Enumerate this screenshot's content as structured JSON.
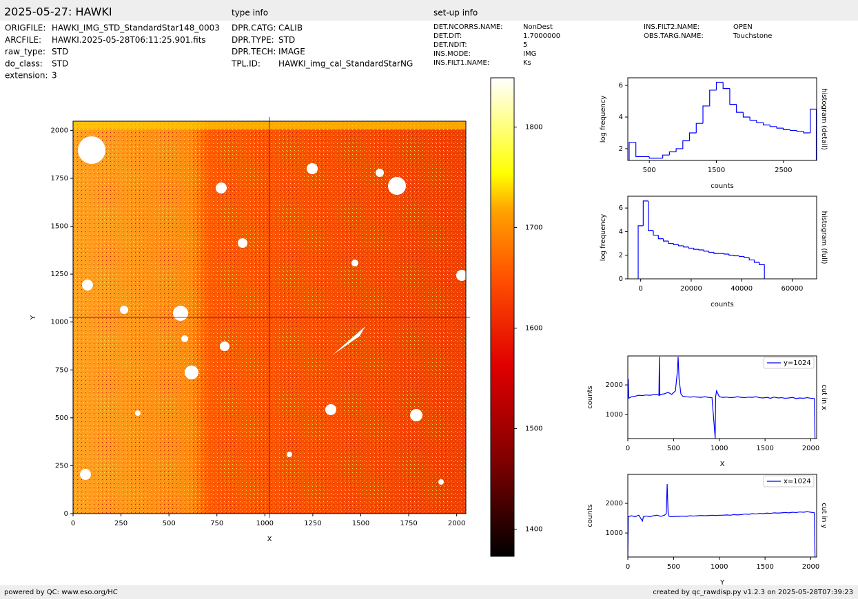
{
  "header": {
    "title": "2025-05-27: HAWKI",
    "type_info": "type info",
    "setup_info": "set-up info"
  },
  "info": {
    "file": [
      {
        "key": "ORIGFILE:",
        "value": "HAWKI_IMG_STD_StandardStar148_0003"
      },
      {
        "key": "ARCFILE:",
        "value": "HAWKI.2025-05-28T06:11:25.901.fits"
      },
      {
        "key": "raw_type:",
        "value": "STD"
      },
      {
        "key": "do_class:",
        "value": "STD"
      },
      {
        "key": "extension:",
        "value": "3"
      }
    ],
    "type": [
      {
        "key": "DPR.CATG:",
        "value": "CALIB"
      },
      {
        "key": "DPR.TYPE:",
        "value": "STD"
      },
      {
        "key": "DPR.TECH:",
        "value": "IMAGE"
      },
      {
        "key": "TPL.ID:",
        "value": "HAWKI_img_cal_StandardStarNG"
      }
    ],
    "setup": [
      {
        "key": "DET.NCORRS.NAME:",
        "value": "NonDest"
      },
      {
        "key": "DET.DIT:",
        "value": "1.7000000"
      },
      {
        "key": "DET.NDIT:",
        "value": "5"
      },
      {
        "key": "INS.MODE:",
        "value": "IMG"
      },
      {
        "key": "INS.FILT1.NAME:",
        "value": "Ks"
      },
      {
        "key": "INS.FILT2.NAME:",
        "value": "OPEN"
      },
      {
        "key": "OBS.TARG.NAME:",
        "value": "Touchstone"
      }
    ]
  },
  "footer": {
    "left": "powered by QC: www.eso.org/HC",
    "right": "created by qc_rawdisp.py v1.2.3 on 2025-05-28T07:39:23"
  },
  "chart_data": [
    {
      "type": "image",
      "xlabel": "X",
      "ylabel": "Y",
      "xlim": [
        0,
        2048
      ],
      "ylim": [
        0,
        2048
      ],
      "xticks": [
        0,
        250,
        500,
        750,
        1000,
        1250,
        1500,
        1750,
        2000
      ],
      "yticks": [
        0,
        250,
        500,
        750,
        1000,
        1250,
        1500,
        1750,
        2000
      ],
      "crosshair": [
        1024,
        1024
      ],
      "color": "#0000ff"
    },
    {
      "type": "colorbar",
      "ylim": [
        1373,
        1849
      ],
      "yticks": [
        1400,
        1500,
        1600,
        1700,
        1800
      ]
    },
    {
      "type": "histogram",
      "xlabel": "counts",
      "ylabel": "log frequency",
      "side_label": "histogram (detail)",
      "color": "#0000ff",
      "xlim": [
        180,
        2995
      ],
      "ylim": [
        1.26,
        6.48
      ],
      "xticks": [
        500,
        1500,
        2500
      ],
      "yticks": [
        2,
        4,
        6
      ],
      "bins": [
        200,
        300,
        400,
        500,
        600,
        700,
        800,
        900,
        1000,
        1100,
        1200,
        1300,
        1400,
        1500,
        1600,
        1700,
        1800,
        1900,
        2000,
        2100,
        2200,
        2300,
        2400,
        2500,
        2600,
        2700,
        2800,
        2900,
        2990
      ],
      "values": [
        2.4,
        1.5,
        1.5,
        1.4,
        1.4,
        1.6,
        1.8,
        2.0,
        2.5,
        3.0,
        3.6,
        4.7,
        5.7,
        6.2,
        5.8,
        4.8,
        4.3,
        4.0,
        3.8,
        3.65,
        3.5,
        3.4,
        3.3,
        3.2,
        3.15,
        3.1,
        3.0,
        4.5
      ]
    },
    {
      "type": "histogram",
      "xlabel": "counts",
      "ylabel": "log frequency",
      "side_label": "histogram (full)",
      "color": "#0000ff",
      "xlim": [
        -5100,
        69700
      ],
      "ylim": [
        0,
        7
      ],
      "xticks": [
        0,
        20000,
        40000,
        60000
      ],
      "yticks": [
        0,
        2,
        4,
        6
      ],
      "bins": [
        -1000,
        1000,
        3000,
        5000,
        7000,
        9000,
        11000,
        13000,
        15000,
        17000,
        19000,
        21000,
        23000,
        25000,
        27000,
        29000,
        31000,
        33000,
        35000,
        37000,
        39000,
        41000,
        43000,
        45000,
        47000,
        49000
      ],
      "values": [
        4.5,
        6.6,
        4.1,
        3.7,
        3.4,
        3.2,
        3.0,
        2.9,
        2.8,
        2.7,
        2.6,
        2.5,
        2.45,
        2.35,
        2.25,
        2.15,
        2.15,
        2.1,
        2.0,
        1.95,
        1.9,
        1.8,
        1.6,
        1.4,
        1.2
      ]
    },
    {
      "type": "line",
      "xlabel": "X",
      "ylabel": "counts",
      "side_label": "cut in x",
      "xlim": [
        0,
        2064
      ],
      "ylim": [
        190,
        2977
      ],
      "xticks": [
        0,
        500,
        1000,
        1500,
        2000
      ],
      "yticks": [
        1000,
        2000
      ],
      "legend": "upper right",
      "x": [
        0,
        5,
        10,
        40,
        80,
        120,
        160,
        200,
        240,
        280,
        320,
        340,
        345,
        350,
        360,
        400,
        440,
        480,
        520,
        540,
        550,
        560,
        580,
        600,
        640,
        680,
        720,
        760,
        800,
        840,
        880,
        920,
        955,
        960,
        970,
        1000,
        1040,
        1080,
        1120,
        1160,
        1200,
        1240,
        1280,
        1320,
        1360,
        1400,
        1440,
        1480,
        1520,
        1560,
        1600,
        1640,
        1680,
        1720,
        1760,
        1800,
        1840,
        1880,
        1920,
        1960,
        2000,
        2040,
        2046
      ],
      "series": [
        {
          "name": "y=1024",
          "color": "#0000ff",
          "values": [
            1600,
            2200,
            1550,
            1600,
            1620,
            1650,
            1640,
            1660,
            1650,
            1670,
            1680,
            1650,
            2950,
            1650,
            1680,
            1700,
            1750,
            1680,
            1800,
            2400,
            2950,
            2200,
            1700,
            1620,
            1600,
            1590,
            1600,
            1590,
            1580,
            1600,
            1580,
            1570,
            200,
            1600,
            1800,
            1600,
            1580,
            1590,
            1570,
            1580,
            1600,
            1580,
            1570,
            1590,
            1580,
            1600,
            1570,
            1560,
            1580,
            1550,
            1590,
            1560,
            1570,
            1550,
            1560,
            1580,
            1540,
            1560,
            1550,
            1570,
            1550,
            1540,
            200
          ]
        }
      ]
    },
    {
      "type": "line",
      "xlabel": "Y",
      "ylabel": "counts",
      "side_label": "cut in y",
      "xlim": [
        0,
        2064
      ],
      "ylim": [
        190,
        2977
      ],
      "xticks": [
        0,
        500,
        1000,
        1500,
        2000
      ],
      "yticks": [
        1000,
        2000
      ],
      "legend": "upper right",
      "x": [
        0,
        5,
        40,
        80,
        120,
        160,
        170,
        200,
        240,
        280,
        320,
        360,
        400,
        420,
        430,
        440,
        450,
        480,
        520,
        560,
        600,
        640,
        680,
        720,
        760,
        800,
        840,
        880,
        920,
        960,
        1000,
        1040,
        1080,
        1120,
        1160,
        1200,
        1240,
        1280,
        1320,
        1360,
        1400,
        1440,
        1480,
        1520,
        1560,
        1600,
        1640,
        1680,
        1720,
        1760,
        1800,
        1840,
        1880,
        1920,
        1960,
        2000,
        2040,
        2046
      ],
      "series": [
        {
          "name": "x=1024",
          "color": "#0000ff",
          "values": [
            200,
            1550,
            1580,
            1550,
            1600,
            1400,
            1550,
            1570,
            1550,
            1580,
            1600,
            1560,
            1600,
            1650,
            2650,
            1700,
            1560,
            1550,
            1560,
            1560,
            1570,
            1560,
            1580,
            1570,
            1580,
            1590,
            1580,
            1590,
            1600,
            1590,
            1600,
            1600,
            1610,
            1600,
            1620,
            1610,
            1620,
            1640,
            1630,
            1650,
            1640,
            1660,
            1650,
            1670,
            1660,
            1680,
            1670,
            1680,
            1690,
            1680,
            1700,
            1690,
            1710,
            1700,
            1720,
            1700,
            1680,
            200
          ]
        }
      ]
    }
  ]
}
